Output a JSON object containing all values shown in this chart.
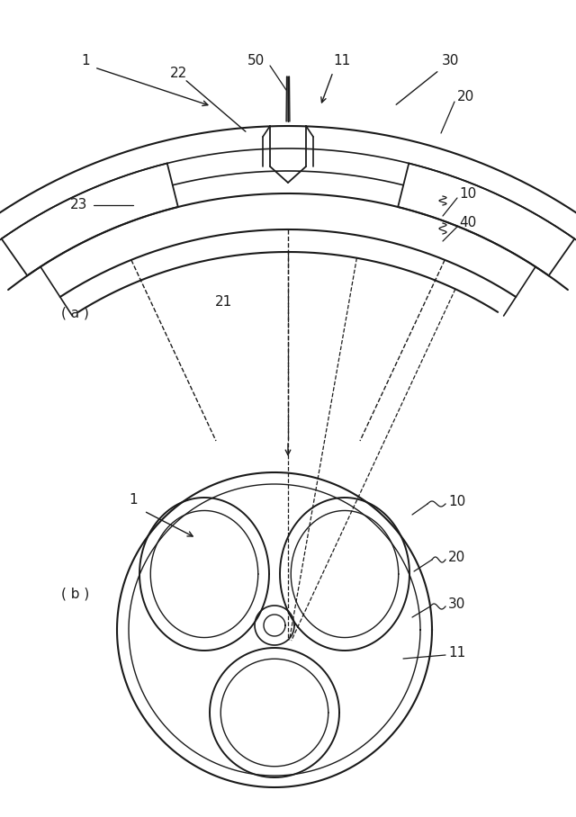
{
  "bg_color": "#ffffff",
  "line_color": "#1a1a1a",
  "fig_width": 6.4,
  "fig_height": 9.08,
  "dpi": 100,
  "label_fontsize": 11
}
